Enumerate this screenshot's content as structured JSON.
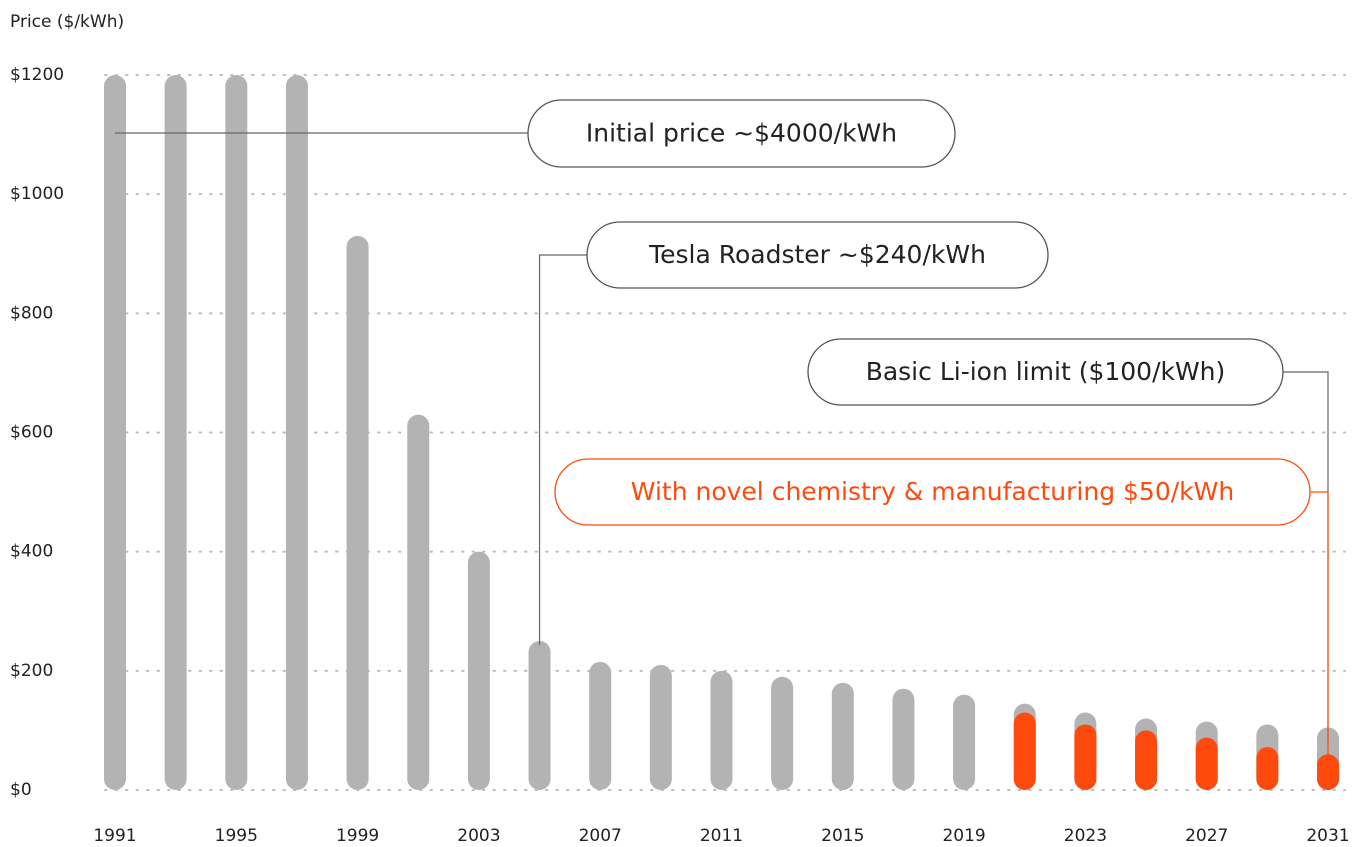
{
  "chart_data": {
    "type": "bar",
    "ylabel": "Price ($/kWh)",
    "categories": [
      "1991",
      null,
      "1995",
      null,
      "1999",
      null,
      "2003",
      null,
      "2007",
      null,
      "2011",
      null,
      "2015",
      null,
      "2019",
      null,
      "2023",
      null,
      "2027",
      null,
      "2031"
    ],
    "series": [
      {
        "color": "#b3b3b3",
        "values": [
          1200,
          1200,
          1200,
          1200,
          930,
          630,
          400,
          250,
          215,
          210,
          200,
          190,
          180,
          170,
          160,
          145,
          130,
          120,
          115,
          110,
          105
        ]
      },
      {
        "color": "#ff4a0d",
        "values": [
          null,
          null,
          null,
          null,
          null,
          null,
          null,
          null,
          null,
          null,
          null,
          null,
          null,
          null,
          null,
          130,
          110,
          100,
          88,
          72,
          60
        ]
      }
    ],
    "ylim": [
      0,
      1200
    ],
    "yticks": [
      {
        "value": 0,
        "label": "$0"
      },
      {
        "value": 200,
        "label": "$200"
      },
      {
        "value": 400,
        "label": "$400"
      },
      {
        "value": 600,
        "label": "$600"
      },
      {
        "value": 800,
        "label": "$800"
      },
      {
        "value": 1000,
        "label": "$1000"
      },
      {
        "value": 1200,
        "label": "$1200"
      }
    ],
    "grid": true,
    "annotations": [
      {
        "text": "Initial price ~$4000/kWh"
      },
      {
        "text": "Tesla Roadster ~$240/kWh"
      },
      {
        "text": "Basic Li-ion limit ($100/kWh)"
      },
      {
        "text": "With novel chemistry & manufacturing $50/kWh",
        "color": "#ff4a0d"
      }
    ]
  }
}
